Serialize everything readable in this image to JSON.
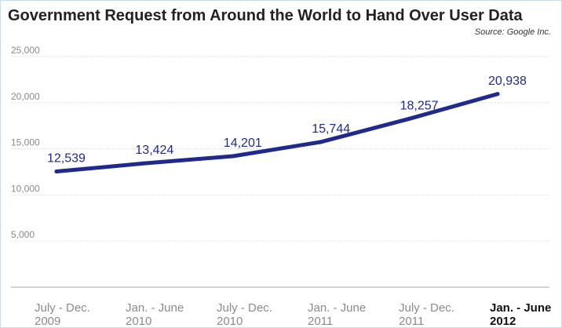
{
  "chart_data": {
    "type": "line",
    "title": "Government Request from Around the World to Hand Over User Data",
    "source": "Source: Google Inc.",
    "xlabel": "",
    "ylabel": "",
    "categories": [
      [
        "July - Dec.",
        "2009"
      ],
      [
        "Jan. - June",
        "2010"
      ],
      [
        "July - Dec.",
        "2010"
      ],
      [
        "Jan. - June",
        "2011"
      ],
      [
        "July - Dec.",
        "2011"
      ],
      [
        "Jan. - June",
        "2012"
      ]
    ],
    "highlight_category": 5,
    "values": [
      12539,
      13424,
      14201,
      15744,
      18257,
      20938
    ],
    "data_labels": [
      "12,539",
      "13,424",
      "14,201",
      "15,744",
      "18,257",
      "20,938"
    ],
    "yticks": [
      5000,
      10000,
      15000,
      20000,
      25000
    ],
    "ytick_labels": [
      "5,000",
      "10,000",
      "15,000",
      "20,000",
      "25,000"
    ],
    "ylim": [
      0,
      25000
    ],
    "grid": "horizontal-dashed",
    "legend": "none",
    "colors": {
      "line": "#1f2a8c",
      "labels": "#1f2a8c",
      "grid": "#dddddd",
      "axis": "#aaaaaa",
      "ticks": "#8a8a8a",
      "xlabels": "#8a8a8a",
      "xlabel_highlight": "#111111",
      "title": "#222222",
      "frame": "#c9dcec"
    }
  }
}
